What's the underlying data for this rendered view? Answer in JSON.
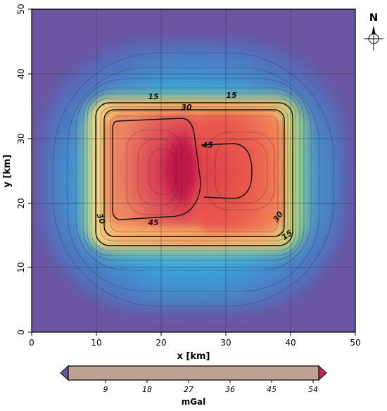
{
  "map": {
    "x_axis": {
      "label": "x [km]",
      "ticks": [
        "0",
        "10",
        "20",
        "30",
        "40",
        "50"
      ]
    },
    "y_axis": {
      "label": "y [km]",
      "ticks": [
        "0",
        "10",
        "20",
        "30",
        "40",
        "50"
      ]
    },
    "north_arrow": {
      "label": "N"
    },
    "contour_labels": [
      "15",
      "15",
      "15",
      "30",
      "30",
      "30",
      "45",
      "45"
    ],
    "palette": {
      "low": "#6a55a2",
      "mid_blue": "#3aa1d8",
      "green": "#7fc97f",
      "yellow": "#f4e38a",
      "orange": "#f4a460",
      "high": "#d82a4a",
      "peak": "#c81e4a"
    }
  },
  "colorbar": {
    "label": "mGal",
    "ticks": [
      "9",
      "18",
      "27",
      "36",
      "45",
      "54"
    ],
    "fill": "#bfa293",
    "under_color": "#6a55a2",
    "over_color": "#c81e56"
  }
}
